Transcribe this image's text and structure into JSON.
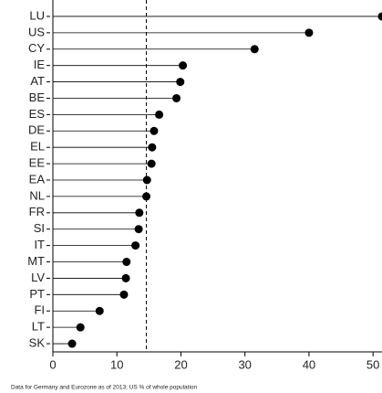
{
  "chart_data": {
    "type": "lollipop",
    "note": "Data for Germany and Eurozone as of 2013; US % of whole population",
    "categories": [
      "LU",
      "US",
      "CY",
      "IE",
      "AT",
      "BE",
      "ES",
      "DE",
      "EL",
      "EE",
      "EA",
      "NL",
      "FR",
      "SI",
      "IT",
      "MT",
      "LV",
      "PT",
      "FI",
      "LT",
      "SK"
    ],
    "values": [
      51.4,
      40,
      31.5,
      20.3,
      19.9,
      19.3,
      16.6,
      15.8,
      15.5,
      15.4,
      14.7,
      14.6,
      13.5,
      13.4,
      12.9,
      11.5,
      11.4,
      11.1,
      7.3,
      4.3,
      3.0
    ],
    "color": "#000000",
    "reference_line": 14.6,
    "xlim": [
      0,
      51.4
    ],
    "xticks": [
      0,
      10,
      20,
      30,
      40,
      50
    ]
  }
}
